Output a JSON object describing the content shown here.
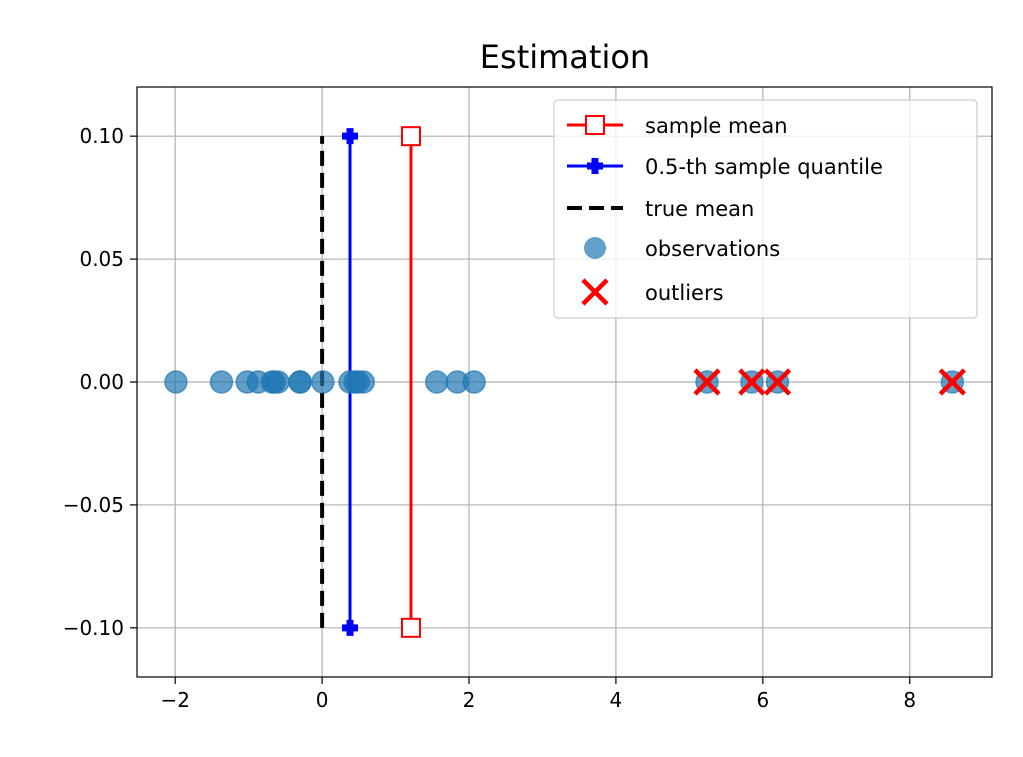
{
  "chart_data": {
    "type": "scatter",
    "title": "Estimation",
    "xlabel": "",
    "ylabel": "",
    "xlim": [
      -2.52,
      9.12
    ],
    "ylim": [
      -0.12,
      0.12
    ],
    "xticks": [
      -2,
      0,
      2,
      4,
      6,
      8
    ],
    "xtick_labels": [
      "−2",
      "0",
      "2",
      "4",
      "6",
      "8"
    ],
    "yticks": [
      0.1,
      0.05,
      0.0,
      -0.05,
      -0.1
    ],
    "ytick_labels": [
      "0.10",
      "0.05",
      "0.00",
      "−0.05",
      "−0.10"
    ],
    "grid": true,
    "legend_position": "top-right",
    "observations": [
      -1.99,
      -1.37,
      -1.02,
      -0.87,
      -0.68,
      -0.65,
      -0.6,
      -0.3,
      -0.3,
      0.01,
      0.38,
      0.45,
      0.49,
      0.56,
      1.56,
      1.84,
      2.07,
      5.24,
      5.85,
      6.2,
      8.58
    ],
    "outliers": [
      5.24,
      5.85,
      6.2,
      8.58
    ],
    "sample_mean": 1.21,
    "sample_quantile": 0.38,
    "true_mean": 0.0,
    "vline_range": [
      -0.1,
      0.1
    ],
    "legend": [
      {
        "label": "sample mean",
        "color": "#ff0000",
        "marker": "square"
      },
      {
        "label": "0.5-th sample quantile",
        "color": "#0000ff",
        "marker": "plus"
      },
      {
        "label": "true mean",
        "color": "#000000",
        "marker": "dashed"
      },
      {
        "label": "observations",
        "color": "#1f77b4",
        "marker": "circle"
      },
      {
        "label": "outliers",
        "color": "#ff0000",
        "marker": "x"
      }
    ]
  }
}
